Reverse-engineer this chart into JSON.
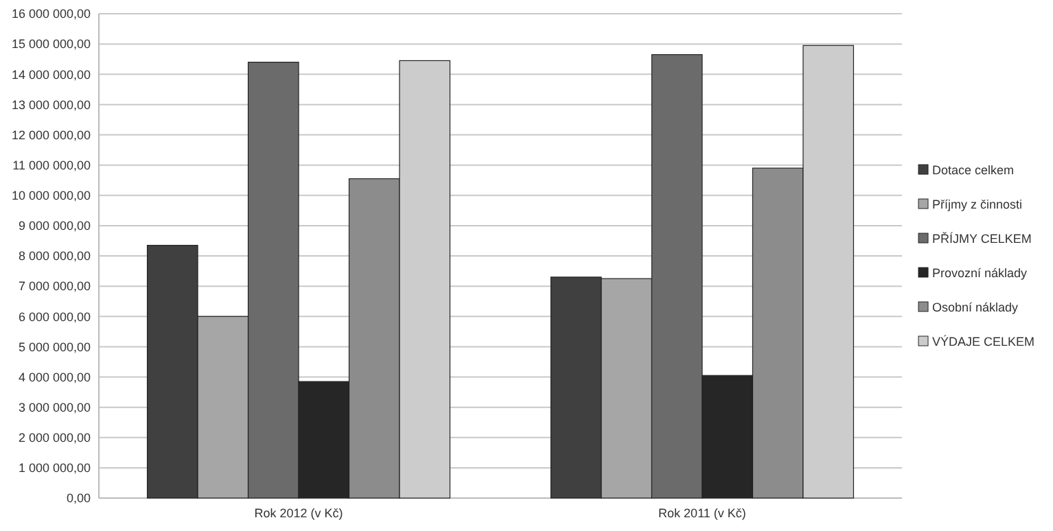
{
  "chart_data": {
    "type": "bar",
    "categories": [
      "Rok 2012 (v Kč)",
      "Rok 2011 (v Kč)"
    ],
    "series": [
      {
        "name": "Dotace celkem",
        "color": "#404040",
        "values": [
          8350000,
          7300000
        ]
      },
      {
        "name": "Příjmy z činnosti",
        "color": "#a6a6a6",
        "values": [
          6000000,
          7250000
        ]
      },
      {
        "name": "PŘÍJMY CELKEM",
        "color": "#6b6b6b",
        "values": [
          14400000,
          14650000
        ]
      },
      {
        "name": "Provozní náklady",
        "color": "#262626",
        "values": [
          3850000,
          4050000
        ]
      },
      {
        "name": "Osobní náklady",
        "color": "#8c8c8c",
        "values": [
          10550000,
          10900000
        ]
      },
      {
        "name": "VÝDAJE CELKEM",
        "color": "#cccccc",
        "values": [
          14450000,
          14950000
        ]
      }
    ],
    "ylim": [
      0,
      16000000
    ],
    "yticks": [
      {
        "value": 0,
        "label": "0,00"
      },
      {
        "value": 1000000,
        "label": "1 000 000,00"
      },
      {
        "value": 2000000,
        "label": "2 000 000,00"
      },
      {
        "value": 3000000,
        "label": "3 000 000,00"
      },
      {
        "value": 4000000,
        "label": "4 000 000,00"
      },
      {
        "value": 5000000,
        "label": "5 000 000,00"
      },
      {
        "value": 6000000,
        "label": "6 000 000,00"
      },
      {
        "value": 7000000,
        "label": "7 000 000,00"
      },
      {
        "value": 8000000,
        "label": "8 000 000,00"
      },
      {
        "value": 9000000,
        "label": "9 000 000,00"
      },
      {
        "value": 10000000,
        "label": "10 000 000,00"
      },
      {
        "value": 11000000,
        "label": "11 000 000,00"
      },
      {
        "value": 12000000,
        "label": "12 000 000,00"
      },
      {
        "value": 13000000,
        "label": "13 000 000,00"
      },
      {
        "value": 14000000,
        "label": "14 000 000,00"
      },
      {
        "value": 15000000,
        "label": "15 000 000,00"
      },
      {
        "value": 16000000,
        "label": "16 000 000,00"
      }
    ],
    "grid": "y",
    "legend": "right"
  }
}
